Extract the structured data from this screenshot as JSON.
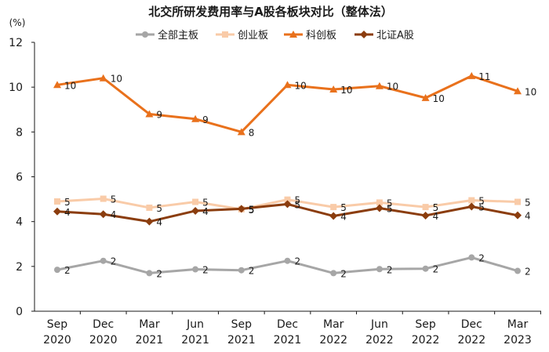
{
  "chart_data": {
    "type": "line",
    "title": "北交所研发费用率与A股各板块对比（整体法）",
    "ylabel": "(%)",
    "xlabel": "",
    "ylim": [
      0,
      12
    ],
    "yticks": [
      "0",
      "2",
      "4",
      "6",
      "8",
      "10",
      "12"
    ],
    "categories": [
      [
        "Sep",
        "2020"
      ],
      [
        "Dec",
        "2020"
      ],
      [
        "Mar",
        "2021"
      ],
      [
        "Jun",
        "2021"
      ],
      [
        "Sep",
        "2021"
      ],
      [
        "Dec",
        "2021"
      ],
      [
        "Mar",
        "2022"
      ],
      [
        "Jun",
        "2022"
      ],
      [
        "Sep",
        "2022"
      ],
      [
        "Dec",
        "2022"
      ],
      [
        "Mar",
        "2023"
      ]
    ],
    "legend_position": "top",
    "series": [
      {
        "name": "全部主板",
        "color": "#a6a6a6",
        "marker": "circle",
        "values": [
          1.85,
          2.25,
          1.7,
          1.87,
          1.83,
          2.25,
          1.7,
          1.88,
          1.9,
          2.4,
          1.8
        ],
        "labels": [
          "2",
          "2",
          "2",
          "2",
          "2",
          "2",
          "2",
          "2",
          "2",
          "2",
          "2"
        ]
      },
      {
        "name": "创业板",
        "color": "#f9cba8",
        "marker": "square",
        "values": [
          4.9,
          5.02,
          4.62,
          4.88,
          4.55,
          4.98,
          4.65,
          4.85,
          4.65,
          4.95,
          4.88
        ],
        "labels": [
          "5",
          "5",
          "5",
          "5",
          "5",
          "5",
          "5",
          "5",
          "5",
          "5",
          "5"
        ]
      },
      {
        "name": "科创板",
        "color": "#e9711c",
        "marker": "triangle",
        "values": [
          10.1,
          10.4,
          8.8,
          8.58,
          8.0,
          10.1,
          9.9,
          10.05,
          9.52,
          10.5,
          9.82
        ],
        "labels": [
          "10",
          "10",
          "9",
          "9",
          "8",
          "10",
          "10",
          "10",
          "10",
          "11",
          "10"
        ]
      },
      {
        "name": "北证A股",
        "color": "#8b3d0e",
        "marker": "diamond",
        "values": [
          4.45,
          4.33,
          4.0,
          4.48,
          4.57,
          4.78,
          4.25,
          4.6,
          4.27,
          4.67,
          4.28
        ],
        "labels": [
          "4",
          "4",
          "4",
          "4",
          "5",
          "5",
          "4",
          "5",
          "4",
          "5",
          "4"
        ]
      }
    ]
  }
}
